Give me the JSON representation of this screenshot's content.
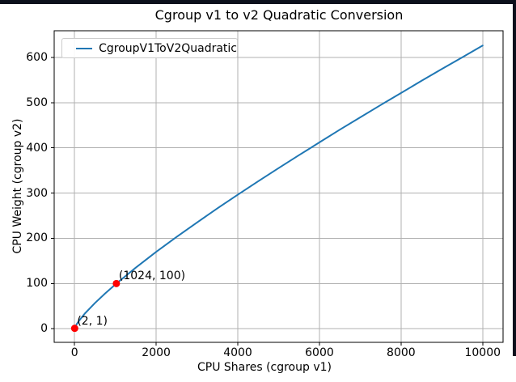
{
  "window": {
    "border_color": "#0c101c"
  },
  "chart_data": {
    "type": "line",
    "title": "Cgroup v1 to v2 Quadratic Conversion",
    "xlabel": "CPU Shares (cgroup v1)",
    "ylabel": "CPU Weight (cgroup v2)",
    "xlim": [
      -500,
      10500
    ],
    "ylim": [
      -30,
      659
    ],
    "xticks": [
      0,
      2000,
      4000,
      6000,
      8000,
      10000
    ],
    "yticks": [
      0,
      100,
      200,
      300,
      400,
      500,
      600
    ],
    "grid": true,
    "grid_color": "#b0b0b0",
    "axes_border_color": "#000000",
    "legend": {
      "position": "upper-left",
      "entries": [
        {
          "label": "CgroupV1ToV2Quadratic",
          "color": "#1f77b4"
        }
      ]
    },
    "series": [
      {
        "name": "CgroupV1ToV2Quadratic",
        "color": "#1f77b4",
        "line_width": 2,
        "points": [
          [
            2,
            1
          ],
          [
            50,
            10
          ],
          [
            100,
            16.7
          ],
          [
            250,
            33.5
          ],
          [
            500,
            57.1
          ],
          [
            750,
            78.3
          ],
          [
            1024,
            100
          ],
          [
            1500,
            135.2
          ],
          [
            2000,
            170
          ],
          [
            2500,
            203.2
          ],
          [
            3000,
            235.1
          ],
          [
            3500,
            266.4
          ],
          [
            4000,
            296.5
          ],
          [
            4500,
            326.3
          ],
          [
            5000,
            355.3
          ],
          [
            5500,
            384
          ],
          [
            6000,
            412.3
          ],
          [
            6500,
            440.3
          ],
          [
            7000,
            467.5
          ],
          [
            7500,
            494.8
          ],
          [
            8000,
            521.3
          ],
          [
            8500,
            548.2
          ],
          [
            9000,
            574.3
          ],
          [
            9500,
            600.1
          ],
          [
            10000,
            626.2
          ]
        ]
      }
    ],
    "annotations": [
      {
        "x": 2,
        "y": 1,
        "label": "(2, 1)",
        "marker_color": "#ff0000"
      },
      {
        "x": 1024,
        "y": 100,
        "label": "(1024, 100)",
        "marker_color": "#ff0000"
      }
    ]
  }
}
